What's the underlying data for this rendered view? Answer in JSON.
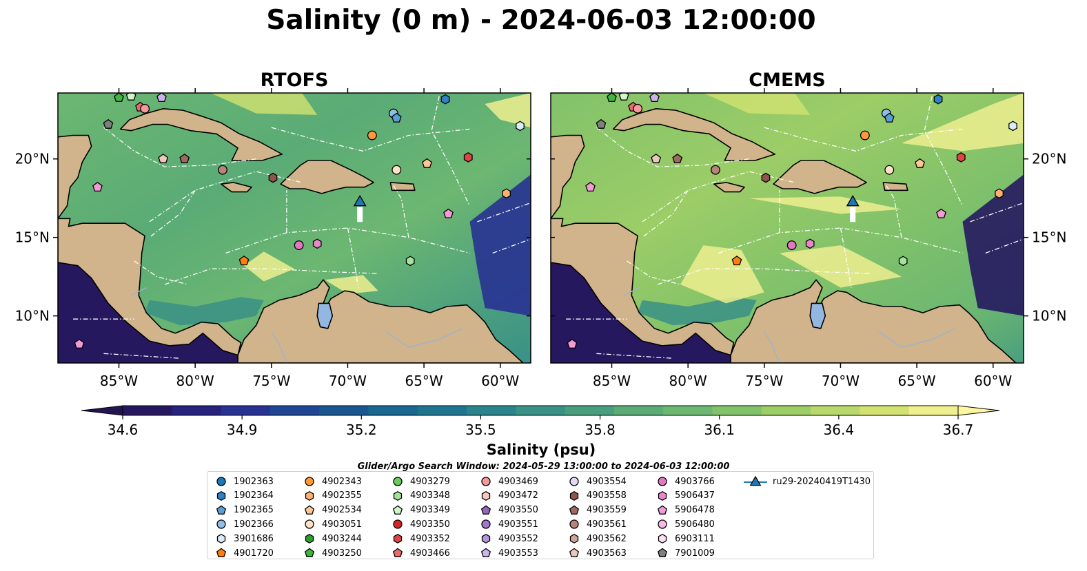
{
  "title": "Salinity (0 m) - 2024-06-03 12:00:00",
  "panels": [
    {
      "name": "RTOFS",
      "variant": "rtofs"
    },
    {
      "name": "CMEMS",
      "variant": "cmems"
    }
  ],
  "map_extent": {
    "lon": [
      -89,
      -58
    ],
    "lat": [
      7,
      24.2
    ]
  },
  "lon_ticks": [
    {
      "lon": -85,
      "label": "85°W"
    },
    {
      "lon": -80,
      "label": "80°W"
    },
    {
      "lon": -75,
      "label": "75°W"
    },
    {
      "lon": -70,
      "label": "70°W"
    },
    {
      "lon": -65,
      "label": "65°W"
    },
    {
      "lon": -60,
      "label": "60°W"
    }
  ],
  "lat_ticks": [
    {
      "lat": 20,
      "label": "20°N"
    },
    {
      "lat": 15,
      "label": "15°N"
    },
    {
      "lat": 10,
      "label": "10°N"
    }
  ],
  "colorbar": {
    "label": "Salinity (psu)",
    "min": 34.6,
    "max": 36.7,
    "ticks": [
      "34.6",
      "34.9",
      "35.2",
      "35.5",
      "35.8",
      "36.1",
      "36.4",
      "36.7"
    ],
    "colors": [
      "#26185f",
      "#27227c",
      "#283292",
      "#1f4694",
      "#1a5790",
      "#1a678f",
      "#1f758f",
      "#2b838c",
      "#3a9186",
      "#4a9e7f",
      "#5aab76",
      "#6cb771",
      "#82c26a",
      "#9ccd67",
      "#b8d86b",
      "#d2e271",
      "#efef8f"
    ],
    "under_color": "#231550",
    "over_color": "#fef5a0"
  },
  "search_window": "Glider/Argo Search Window: 2024-05-29 13:00:00 to 2024-06-03 12:00:00",
  "floats": [
    {
      "id": "1902363",
      "color": "#1f77b4",
      "shape": "circle"
    },
    {
      "id": "1902364",
      "color": "#2e82c7",
      "shape": "hexagon"
    },
    {
      "id": "1902365",
      "color": "#5a9fd6",
      "shape": "pentagon"
    },
    {
      "id": "1902366",
      "color": "#8fbfe8",
      "shape": "circle"
    },
    {
      "id": "3901686",
      "color": "#d9ecfa",
      "shape": "hexagon"
    },
    {
      "id": "4901720",
      "color": "#ff7f0e",
      "shape": "pentagon"
    },
    {
      "id": "4902343",
      "color": "#ff9a3c",
      "shape": "circle"
    },
    {
      "id": "4902355",
      "color": "#ffb070",
      "shape": "hexagon"
    },
    {
      "id": "4902534",
      "color": "#ffc795",
      "shape": "pentagon"
    },
    {
      "id": "4903051",
      "color": "#ffe3c8",
      "shape": "circle"
    },
    {
      "id": "4903244",
      "color": "#2ca02c",
      "shape": "hexagon"
    },
    {
      "id": "4903250",
      "color": "#3fb43f",
      "shape": "pentagon"
    },
    {
      "id": "4903279",
      "color": "#6acc5e",
      "shape": "circle"
    },
    {
      "id": "4903348",
      "color": "#a5e39a",
      "shape": "hexagon"
    },
    {
      "id": "4903349",
      "color": "#d4f4cb",
      "shape": "pentagon"
    },
    {
      "id": "4903350",
      "color": "#d62728",
      "shape": "circle"
    },
    {
      "id": "4903352",
      "color": "#e04344",
      "shape": "hexagon"
    },
    {
      "id": "4903466",
      "color": "#ea6b6b",
      "shape": "pentagon"
    },
    {
      "id": "4903469",
      "color": "#f59a9a",
      "shape": "circle"
    },
    {
      "id": "4903472",
      "color": "#fbc8c0",
      "shape": "hexagon"
    },
    {
      "id": "4903550",
      "color": "#9467bd",
      "shape": "pentagon"
    },
    {
      "id": "4903551",
      "color": "#a07ac8",
      "shape": "circle"
    },
    {
      "id": "4903552",
      "color": "#b497da",
      "shape": "hexagon"
    },
    {
      "id": "4903553",
      "color": "#c9b3ea",
      "shape": "pentagon"
    },
    {
      "id": "4903554",
      "color": "#e6d7f7",
      "shape": "circle"
    },
    {
      "id": "4903558",
      "color": "#8c564b",
      "shape": "hexagon"
    },
    {
      "id": "4903559",
      "color": "#9e6a5e",
      "shape": "pentagon"
    },
    {
      "id": "4903561",
      "color": "#b5857a",
      "shape": "circle"
    },
    {
      "id": "4903562",
      "color": "#d0a598",
      "shape": "hexagon"
    },
    {
      "id": "4903563",
      "color": "#ebc9bd",
      "shape": "pentagon"
    },
    {
      "id": "4903766",
      "color": "#e377c2",
      "shape": "circle"
    },
    {
      "id": "5906437",
      "color": "#ea86cb",
      "shape": "hexagon"
    },
    {
      "id": "5906478",
      "color": "#f29bd6",
      "shape": "pentagon"
    },
    {
      "id": "5906480",
      "color": "#f8b9e4",
      "shape": "circle"
    },
    {
      "id": "6903111",
      "color": "#fde0f4",
      "shape": "hexagon"
    },
    {
      "id": "7901009",
      "color": "#7f7f7f",
      "shape": "pentagon"
    },
    {
      "id": "ru29-20240419T1430",
      "color": "#1f77b4",
      "shape": "triangle-line"
    }
  ],
  "glider": {
    "id": "ru29-20240419T1430",
    "lon": -69.2,
    "lat": 17.3,
    "color": "#1f77b4"
  },
  "map_floats": [
    {
      "id": "4903766",
      "lon": -73.2,
      "lat": 14.5
    },
    {
      "id": "5906437",
      "lon": -72.0,
      "lat": 14.6
    },
    {
      "id": "4901720",
      "lon": -76.8,
      "lat": 13.5
    },
    {
      "id": "4903348",
      "lon": -65.9,
      "lat": 13.5
    },
    {
      "id": "5906478",
      "lon": -63.4,
      "lat": 16.5
    },
    {
      "id": "4902355",
      "lon": -59.6,
      "lat": 17.8
    },
    {
      "id": "4903352",
      "lon": -62.1,
      "lat": 20.1
    },
    {
      "id": "4902534",
      "lon": -64.8,
      "lat": 19.7
    },
    {
      "id": "4903051",
      "lon": -66.8,
      "lat": 19.3
    },
    {
      "id": "4902343",
      "lon": -68.4,
      "lat": 21.5
    },
    {
      "id": "1902366",
      "lon": -67.0,
      "lat": 22.9
    },
    {
      "id": "1902365",
      "lon": -66.8,
      "lat": 22.6
    },
    {
      "id": "1902364",
      "lon": -63.6,
      "lat": 23.8
    },
    {
      "id": "3901686",
      "lon": -58.7,
      "lat": 22.1
    },
    {
      "id": "4903561",
      "lon": -78.2,
      "lat": 19.3
    },
    {
      "id": "4903558",
      "lon": -74.9,
      "lat": 18.8
    },
    {
      "id": "4903559",
      "lon": -80.7,
      "lat": 20.0
    },
    {
      "id": "4903563",
      "lon": -82.1,
      "lat": 20.0
    },
    {
      "id": "5906478",
      "lon": -86.4,
      "lat": 18.2
    },
    {
      "id": "7901009",
      "lon": -85.7,
      "lat": 22.2
    },
    {
      "id": "4903466",
      "lon": -83.6,
      "lat": 23.3
    },
    {
      "id": "4903469",
      "lon": -83.3,
      "lat": 23.2
    },
    {
      "id": "4903553",
      "lon": -82.2,
      "lat": 23.9
    },
    {
      "id": "4903349",
      "lon": -84.2,
      "lat": 24.0
    },
    {
      "id": "4903250",
      "lon": -85.0,
      "lat": 23.9
    },
    {
      "id": "5906478",
      "lon": -87.6,
      "lat": 8.2
    }
  ]
}
